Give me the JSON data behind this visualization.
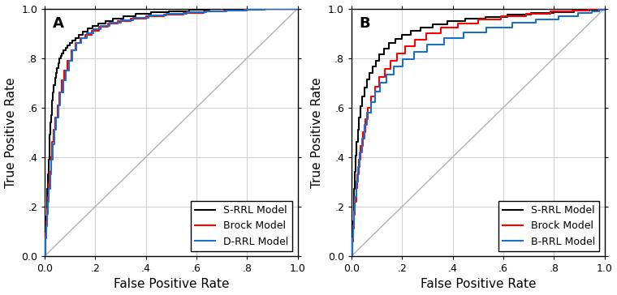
{
  "panel_A": {
    "label": "A",
    "xlabel": "False Positive Rate",
    "ylabel": "True Positive Rate",
    "xlim": [
      0.0,
      1.0
    ],
    "ylim": [
      0.0,
      1.0
    ],
    "xticks": [
      0.0,
      0.2,
      0.4,
      0.6,
      0.8,
      1.0
    ],
    "yticks": [
      0.0,
      0.2,
      0.4,
      0.6,
      0.8,
      1.0
    ],
    "xticklabels": [
      "0.0",
      ".2",
      ".4",
      ".6",
      ".8",
      "1.0"
    ],
    "yticklabels": [
      "0.0",
      ".2",
      ".4",
      ".6",
      ".8",
      "1.0"
    ],
    "legend": [
      "S-RRL Model",
      "Brock Model",
      "D-RRL Model"
    ],
    "curves": {
      "S-RRL": {
        "color": "#000000",
        "fpr": [
          0.0,
          0.002,
          0.004,
          0.006,
          0.008,
          0.01,
          0.012,
          0.015,
          0.018,
          0.02,
          0.022,
          0.025,
          0.028,
          0.03,
          0.033,
          0.036,
          0.04,
          0.044,
          0.048,
          0.053,
          0.058,
          0.063,
          0.068,
          0.075,
          0.082,
          0.09,
          0.1,
          0.11,
          0.12,
          0.135,
          0.15,
          0.17,
          0.19,
          0.21,
          0.24,
          0.27,
          0.31,
          0.36,
          0.42,
          0.49,
          0.57,
          0.65,
          0.73,
          0.8,
          0.87,
          0.93,
          0.97,
          1.0
        ],
        "tpr": [
          0.0,
          0.05,
          0.1,
          0.16,
          0.21,
          0.27,
          0.33,
          0.39,
          0.44,
          0.49,
          0.54,
          0.57,
          0.6,
          0.63,
          0.66,
          0.69,
          0.72,
          0.74,
          0.76,
          0.78,
          0.8,
          0.81,
          0.82,
          0.83,
          0.84,
          0.85,
          0.86,
          0.87,
          0.88,
          0.895,
          0.908,
          0.92,
          0.93,
          0.94,
          0.95,
          0.96,
          0.97,
          0.978,
          0.985,
          0.99,
          0.994,
          0.997,
          0.998,
          0.999,
          0.999,
          1.0,
          1.0,
          1.0
        ]
      },
      "Brock": {
        "color": "#ff0000",
        "fpr": [
          0.0,
          0.002,
          0.004,
          0.007,
          0.01,
          0.013,
          0.016,
          0.02,
          0.025,
          0.03,
          0.036,
          0.042,
          0.05,
          0.058,
          0.067,
          0.078,
          0.09,
          0.105,
          0.12,
          0.14,
          0.16,
          0.185,
          0.215,
          0.25,
          0.29,
          0.34,
          0.4,
          0.47,
          0.55,
          0.63,
          0.71,
          0.79,
          0.86,
          0.92,
          0.96,
          1.0
        ],
        "tpr": [
          0.0,
          0.04,
          0.09,
          0.14,
          0.19,
          0.24,
          0.29,
          0.34,
          0.4,
          0.46,
          0.51,
          0.56,
          0.61,
          0.66,
          0.71,
          0.75,
          0.79,
          0.83,
          0.86,
          0.88,
          0.895,
          0.91,
          0.925,
          0.938,
          0.95,
          0.96,
          0.969,
          0.977,
          0.983,
          0.988,
          0.992,
          0.995,
          0.997,
          0.999,
          1.0,
          1.0
        ]
      },
      "D-RRL": {
        "color": "#1a6fce",
        "fpr": [
          0.0,
          0.002,
          0.004,
          0.007,
          0.01,
          0.013,
          0.017,
          0.021,
          0.026,
          0.032,
          0.038,
          0.045,
          0.053,
          0.062,
          0.072,
          0.083,
          0.096,
          0.11,
          0.126,
          0.145,
          0.167,
          0.192,
          0.222,
          0.257,
          0.3,
          0.35,
          0.41,
          0.48,
          0.56,
          0.64,
          0.72,
          0.8,
          0.87,
          0.93,
          0.97,
          1.0
        ],
        "tpr": [
          0.0,
          0.03,
          0.07,
          0.12,
          0.17,
          0.22,
          0.27,
          0.33,
          0.39,
          0.45,
          0.51,
          0.56,
          0.61,
          0.66,
          0.71,
          0.75,
          0.79,
          0.83,
          0.86,
          0.88,
          0.9,
          0.917,
          0.93,
          0.942,
          0.953,
          0.963,
          0.972,
          0.979,
          0.985,
          0.989,
          0.993,
          0.996,
          0.998,
          0.999,
          1.0,
          1.0
        ]
      }
    }
  },
  "panel_B": {
    "label": "B",
    "xlabel": "False Positive Rate",
    "ylabel": "True Positive Rate",
    "xlim": [
      0.0,
      1.0
    ],
    "ylim": [
      0.0,
      1.0
    ],
    "xticks": [
      0.0,
      0.2,
      0.4,
      0.6,
      0.8,
      1.0
    ],
    "yticks": [
      0.0,
      0.2,
      0.4,
      0.6,
      0.8,
      1.0
    ],
    "xticklabels": [
      "0.0",
      ".2",
      ".4",
      ".6",
      ".8",
      "1.0"
    ],
    "yticklabels": [
      "0.0",
      ".2",
      ".4",
      ".6",
      ".8",
      "1.0"
    ],
    "legend": [
      "S-RRL Model",
      "Brock Model",
      "B-RRL Model"
    ],
    "curves": {
      "S-RRL": {
        "color": "#000000",
        "fpr": [
          0.0,
          0.002,
          0.004,
          0.006,
          0.008,
          0.01,
          0.013,
          0.016,
          0.02,
          0.025,
          0.03,
          0.036,
          0.043,
          0.051,
          0.06,
          0.07,
          0.082,
          0.095,
          0.11,
          0.128,
          0.148,
          0.172,
          0.2,
          0.234,
          0.274,
          0.322,
          0.38,
          0.448,
          0.528,
          0.616,
          0.71,
          0.8,
          0.88,
          0.94,
          0.975,
          1.0
        ],
        "tpr": [
          0.0,
          0.035,
          0.08,
          0.14,
          0.2,
          0.27,
          0.34,
          0.405,
          0.46,
          0.51,
          0.56,
          0.605,
          0.645,
          0.68,
          0.712,
          0.74,
          0.765,
          0.79,
          0.815,
          0.838,
          0.86,
          0.878,
          0.895,
          0.91,
          0.924,
          0.937,
          0.948,
          0.958,
          0.966,
          0.974,
          0.981,
          0.987,
          0.992,
          0.996,
          0.999,
          1.0
        ]
      },
      "Brock": {
        "color": "#ff0000",
        "fpr": [
          0.0,
          0.002,
          0.004,
          0.007,
          0.01,
          0.014,
          0.018,
          0.023,
          0.029,
          0.036,
          0.044,
          0.054,
          0.065,
          0.078,
          0.093,
          0.11,
          0.13,
          0.153,
          0.18,
          0.212,
          0.25,
          0.296,
          0.352,
          0.42,
          0.5,
          0.592,
          0.69,
          0.786,
          0.872,
          0.936,
          0.974,
          1.0
        ],
        "tpr": [
          0.0,
          0.025,
          0.06,
          0.11,
          0.165,
          0.22,
          0.275,
          0.33,
          0.39,
          0.445,
          0.5,
          0.553,
          0.6,
          0.645,
          0.685,
          0.722,
          0.757,
          0.79,
          0.82,
          0.848,
          0.875,
          0.9,
          0.922,
          0.941,
          0.957,
          0.97,
          0.98,
          0.988,
          0.993,
          0.997,
          0.999,
          1.0
        ]
      },
      "B-RRL": {
        "color": "#1a6fce",
        "fpr": [
          0.0,
          0.002,
          0.004,
          0.007,
          0.01,
          0.014,
          0.019,
          0.025,
          0.032,
          0.04,
          0.05,
          0.062,
          0.076,
          0.093,
          0.113,
          0.137,
          0.166,
          0.202,
          0.246,
          0.3,
          0.365,
          0.443,
          0.534,
          0.634,
          0.73,
          0.82,
          0.896,
          0.95,
          0.98,
          1.0
        ],
        "tpr": [
          0.0,
          0.03,
          0.07,
          0.125,
          0.18,
          0.24,
          0.3,
          0.36,
          0.42,
          0.475,
          0.53,
          0.578,
          0.622,
          0.663,
          0.7,
          0.733,
          0.765,
          0.796,
          0.826,
          0.854,
          0.88,
          0.903,
          0.924,
          0.942,
          0.957,
          0.97,
          0.981,
          0.989,
          0.995,
          1.0
        ]
      }
    }
  },
  "figure": {
    "bg_color": "#ffffff",
    "line_width": 1.5,
    "diagonal_color": "#b0b0b0",
    "diagonal_lw": 1.0,
    "grid_color": "#d0d0d0",
    "grid_lw": 0.7,
    "tick_fontsize": 9,
    "label_fontsize": 11,
    "panel_label_fontsize": 13,
    "legend_fontsize": 9,
    "legend_loc": "lower right"
  }
}
